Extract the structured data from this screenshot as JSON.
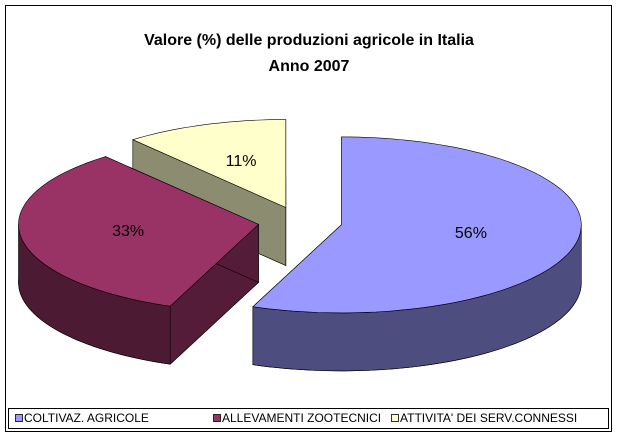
{
  "chart_data": {
    "type": "pie",
    "title": "Valore (%) delle produzioni agricole in Italia",
    "subtitle": "Anno 2007",
    "categories": [
      "COLTIVAZ. AGRICOLE",
      "ALLEVAMENTI ZOOTECNICI",
      "ATTIVITA' DEI SERV.CONNESSI"
    ],
    "values": [
      56,
      33,
      11
    ],
    "value_labels": [
      "56%",
      "33%",
      "11%"
    ],
    "colors": [
      "#9999ff",
      "#993366",
      "#ffffcc"
    ],
    "legend": "bottom"
  }
}
